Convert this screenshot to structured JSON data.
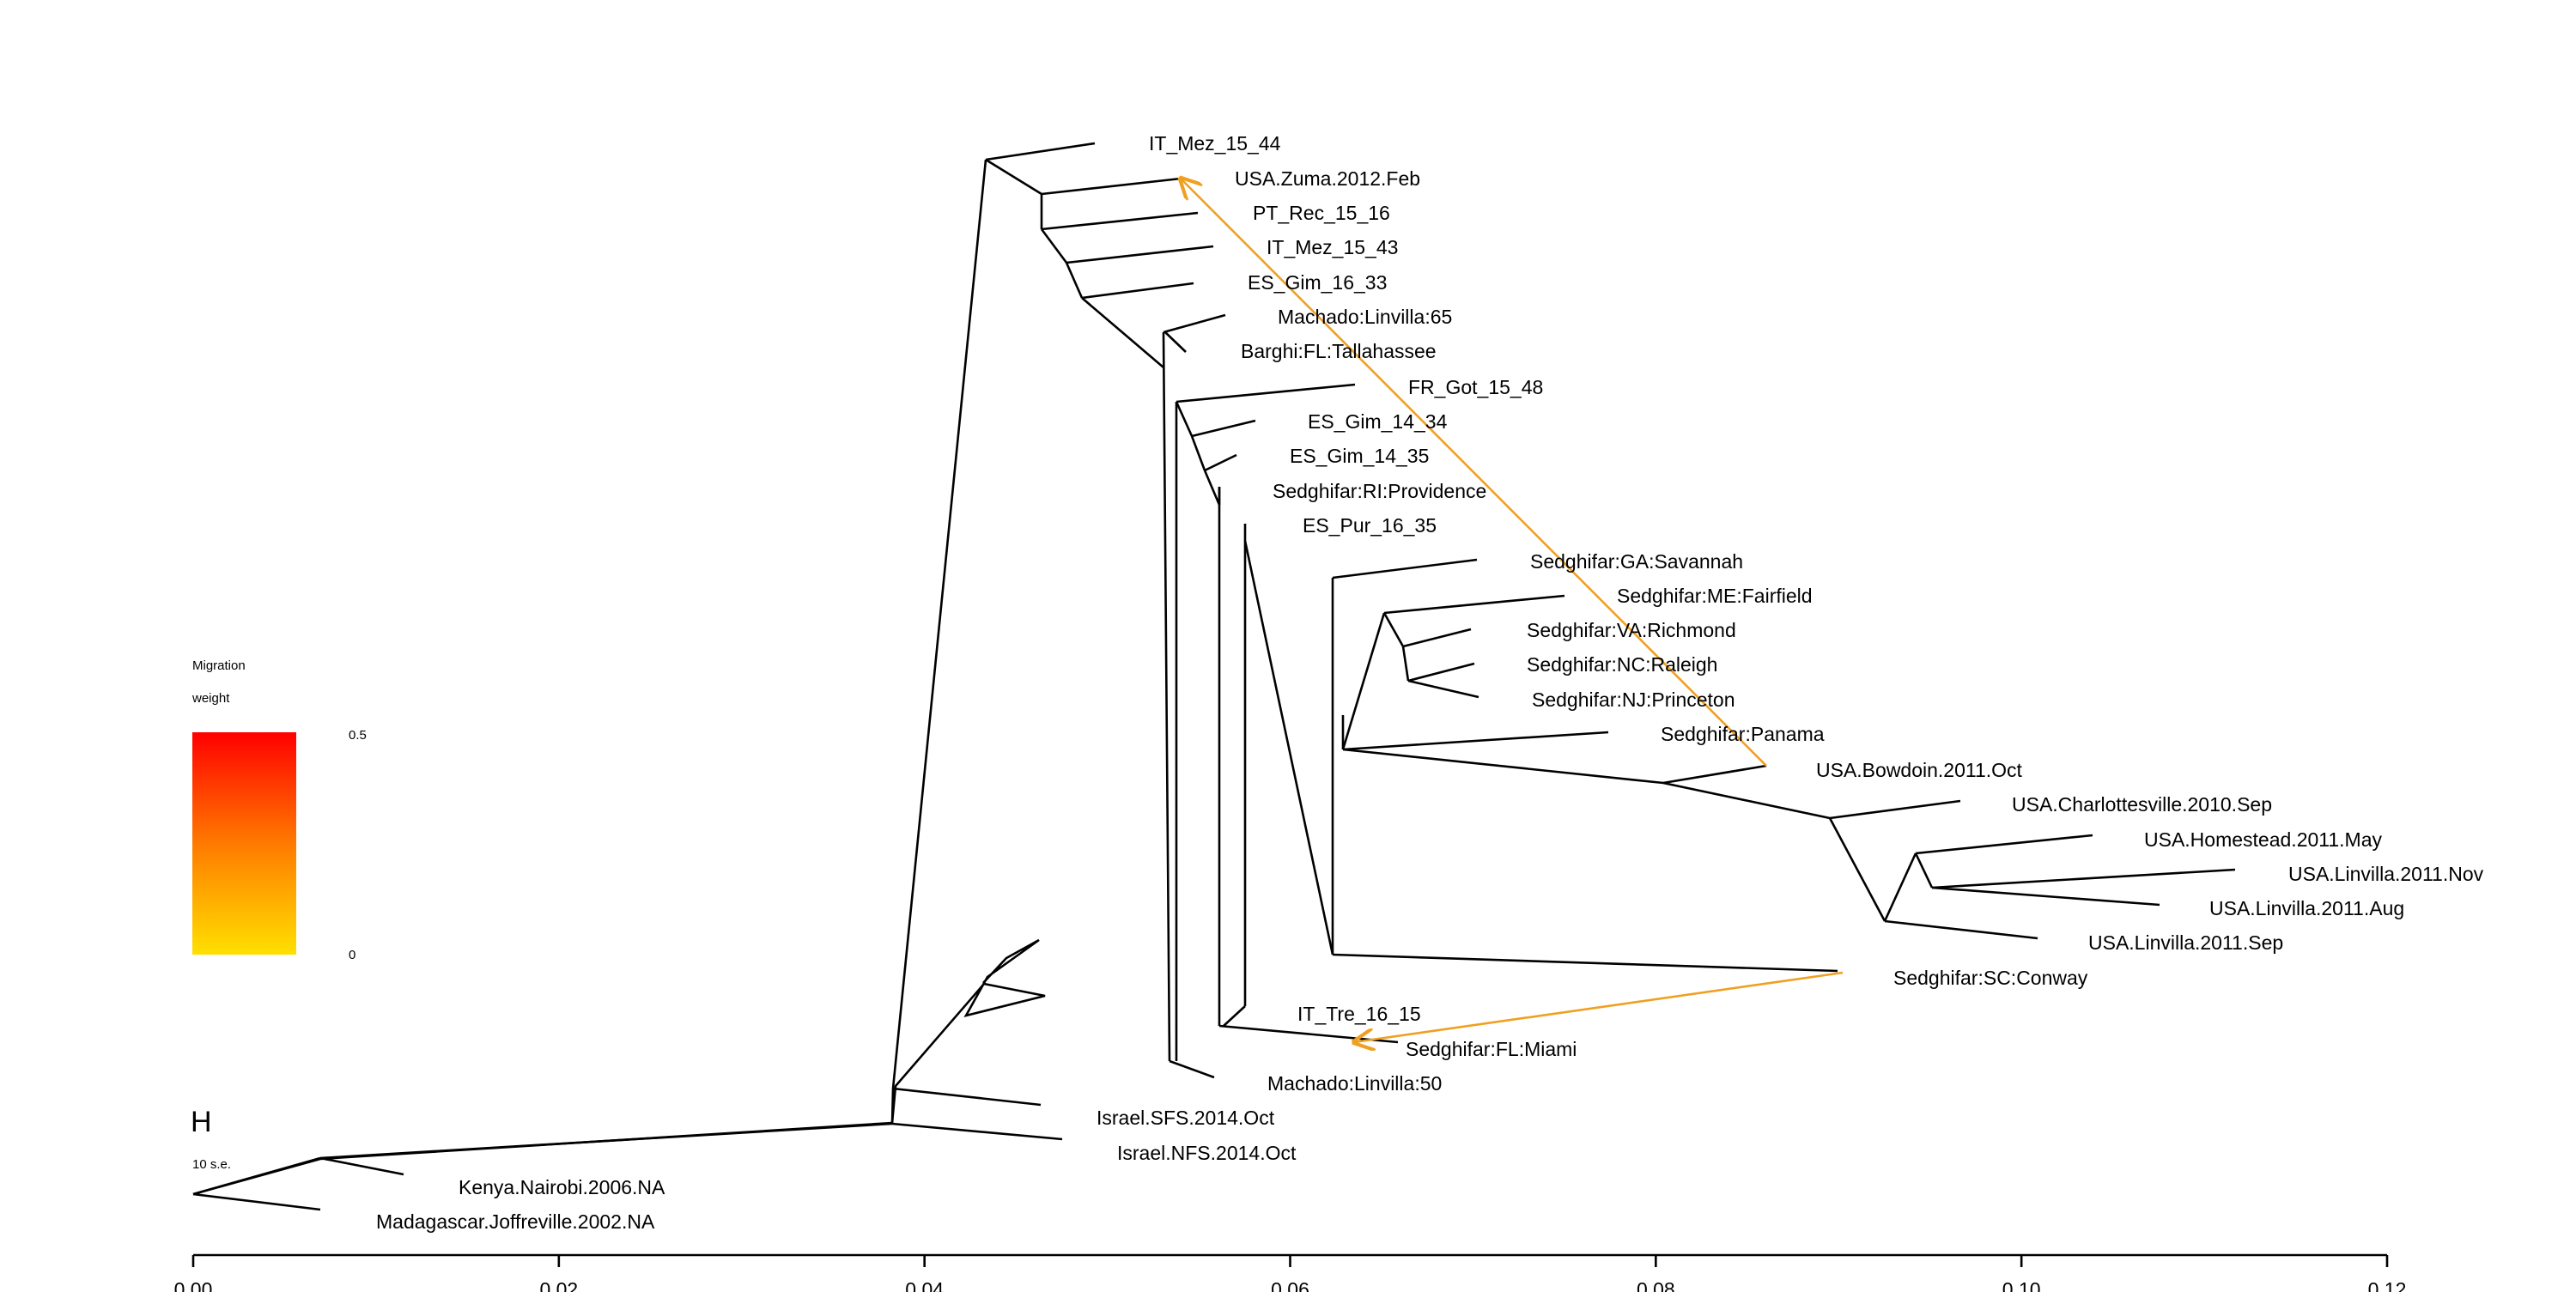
{
  "tree": {
    "tips": [
      "IT_Mez_15_44",
      "USA.Zuma.2012.Feb",
      "PT_Rec_15_16",
      "IT_Mez_15_43",
      "ES_Gim_16_33",
      "Machado:Linvilla:65",
      "Barghi:FL:Tallahassee",
      "FR_Got_15_48",
      "ES_Gim_14_34",
      "ES_Gim_14_35",
      "Sedghifar:RI:Providence",
      "ES_Pur_16_35",
      "Sedghifar:GA:Savannah",
      "Sedghifar:ME:Fairfield",
      "Sedghifar:VA:Richmond",
      "Sedghifar:NC:Raleigh",
      "Sedghifar:NJ:Princeton",
      "Sedghifar:Panama",
      "USA.Bowdoin.2011.Oct",
      "USA.Charlottesville.2010.Sep",
      "USA.Homestead.2011.May",
      "USA.Linvilla.2011.Nov",
      "USA.Linvilla.2011.Aug",
      "USA.Linvilla.2011.Sep",
      "Sedghifar:SC:Conway",
      "IT_Tre_16_15",
      "Sedghifar:FL:Miami",
      "Machado:Linvilla:50",
      "Israel.SFS.2014.Oct",
      "Israel.NFS.2014.Oct",
      "Kenya.Nairobi.2006.NA",
      "Madagascar.Joffreville.2002.NA"
    ],
    "migration_edges": [
      {
        "from": "Sedghifar:Panama / USA.Bowdoin.2011.Oct ancestor",
        "to": "USA.Zuma.2012.Feb",
        "color": "#f0a020"
      },
      {
        "from": "Sedghifar:SC:Conway",
        "to": "Sedghifar:FL:Miami",
        "color": "#f0a020"
      }
    ]
  },
  "axis": {
    "ticks": [
      "0.00",
      "0.02",
      "0.04",
      "0.06",
      "0.08",
      "0.10",
      "0.12"
    ]
  },
  "legend": {
    "title_line1": "Migration",
    "title_line2": "weight",
    "max_label": "0.5",
    "min_label": "0",
    "color_top": "#ff0000",
    "color_mid": "#ff7a00",
    "color_bottom": "#ffe000"
  },
  "scale": {
    "symbol": "H",
    "label": "10 s.e."
  }
}
